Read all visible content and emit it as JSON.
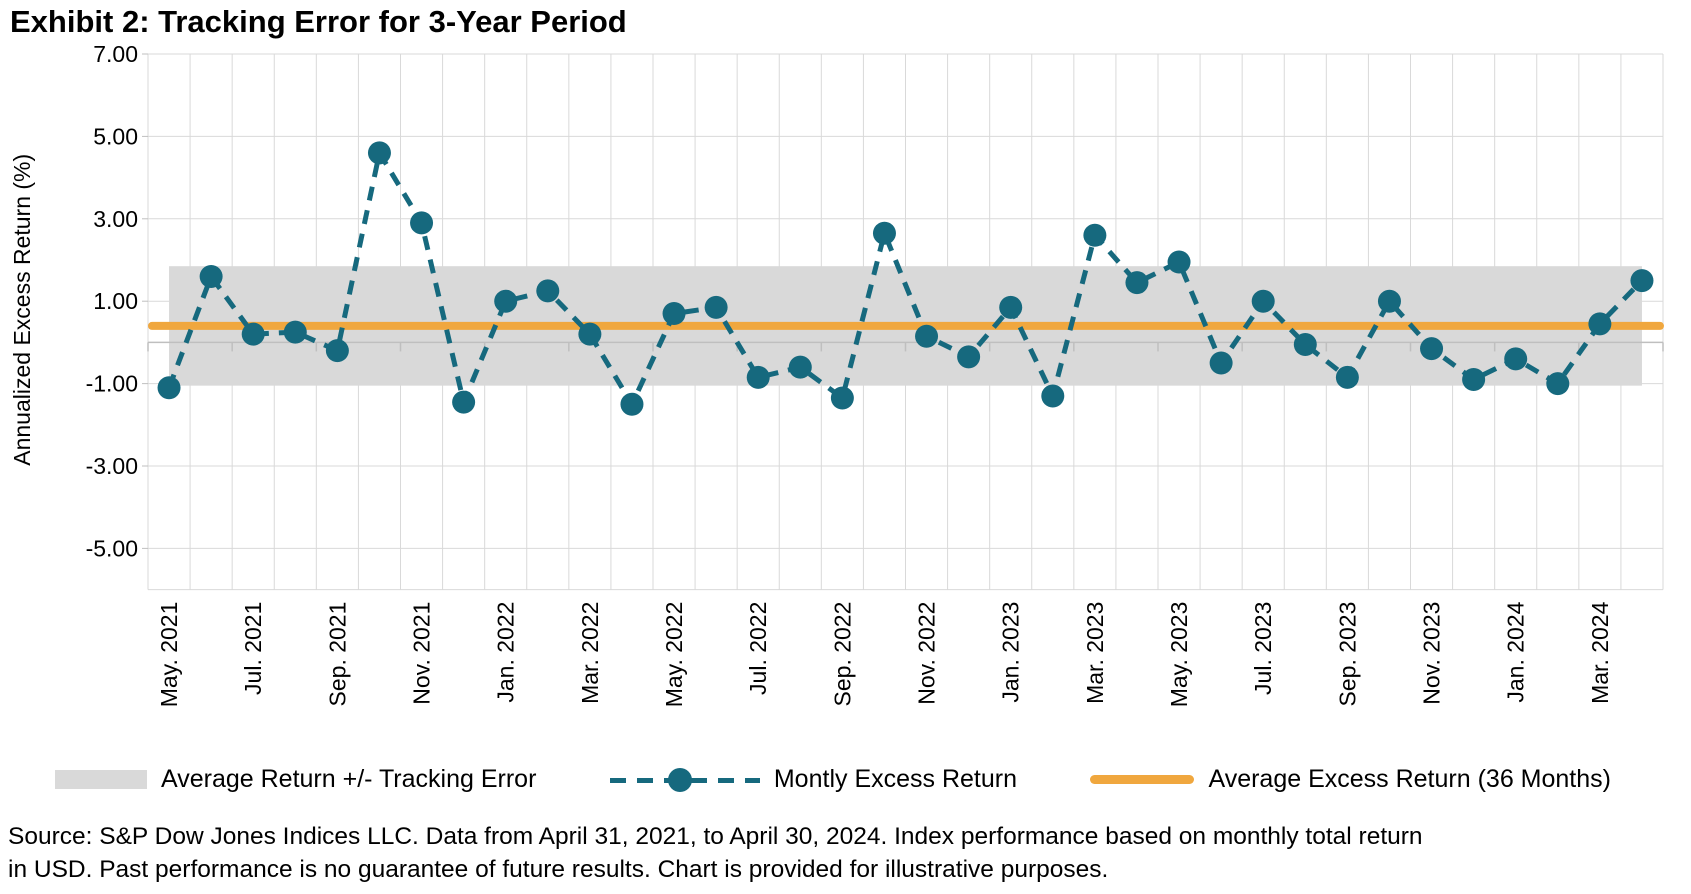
{
  "title": "Exhibit 2: Tracking Error for 3-Year Period",
  "chart_data": {
    "type": "line",
    "title": "Exhibit 2: Tracking Error for 3-Year Period",
    "xlabel": "",
    "ylabel": "Annualized Excess Return (%)",
    "ylim": [
      -6,
      7
    ],
    "yticks": [
      7,
      5,
      3,
      1,
      -1,
      -3,
      -5
    ],
    "ytick_labels": [
      "7.00",
      "5.00",
      "3.00",
      "1.00",
      "-1.00",
      "-3.00",
      "-5.00"
    ],
    "grid": true,
    "legend_position": "bottom",
    "x_tick_labels": [
      "May. 2021",
      "Jul. 2021",
      "Sep. 2021",
      "Nov. 2021",
      "Jan. 2022",
      "Mar. 2022",
      "May. 2022",
      "Jul. 2022",
      "Sep. 2022",
      "Nov. 2022",
      "Jan. 2023",
      "Mar. 2023",
      "May. 2023",
      "Jul. 2023",
      "Sep. 2023",
      "Nov. 2023",
      "Jan. 2024",
      "Mar. 2024"
    ],
    "categories": [
      "May 2021",
      "Jun 2021",
      "Jul 2021",
      "Aug 2021",
      "Sep 2021",
      "Oct 2021",
      "Nov 2021",
      "Dec 2021",
      "Jan 2022",
      "Feb 2022",
      "Mar 2022",
      "Apr 2022",
      "May 2022",
      "Jun 2022",
      "Jul 2022",
      "Aug 2022",
      "Sep 2022",
      "Oct 2022",
      "Nov 2022",
      "Dec 2022",
      "Jan 2023",
      "Feb 2023",
      "Mar 2023",
      "Apr 2023",
      "May 2023",
      "Jun 2023",
      "Jul 2023",
      "Aug 2023",
      "Sep 2023",
      "Oct 2023",
      "Nov 2023",
      "Dec 2023",
      "Jan 2024",
      "Feb 2024",
      "Mar 2024",
      "Apr 2024"
    ],
    "series": [
      {
        "name": "Average Return +/- Tracking Error",
        "type": "band",
        "low": -1.05,
        "high": 1.85,
        "color": "#d9d9d9"
      },
      {
        "name": "Montly Excess Return",
        "type": "line",
        "dashed": true,
        "marker": "circle",
        "color": "#16697e",
        "values": [
          -1.1,
          1.6,
          0.2,
          0.25,
          -0.2,
          4.6,
          2.9,
          -1.45,
          1.0,
          1.25,
          0.2,
          -1.5,
          0.7,
          0.85,
          -0.85,
          -0.6,
          -1.35,
          2.65,
          0.15,
          -0.35,
          0.85,
          -1.3,
          2.6,
          1.45,
          1.95,
          -0.5,
          1.0,
          -0.05,
          -0.85,
          1.0,
          -0.15,
          -0.9,
          -0.4,
          -1.0,
          0.45,
          1.5
        ]
      },
      {
        "name": "Average Excess Return (36 Months)",
        "type": "hline",
        "value": 0.4,
        "color": "#f0a73e"
      }
    ]
  },
  "colors": {
    "teal": "#16697e",
    "orange": "#f0a73e",
    "band_gray": "#d9d9d9",
    "gridline": "#d9d9d9",
    "zero_axis": "#bfbfbf",
    "text": "#000000"
  },
  "legend": {
    "band_label": "Average Return +/- Tracking Error",
    "line_label": "Montly Excess Return",
    "avg_label": "Average Excess Return (36 Months)"
  },
  "source_note": {
    "line1": "Source: S&P Dow Jones Indices LLC. Data from April 31, 2021, to April 30, 2024. Index performance based on monthly total return",
    "line2": "in USD. Past performance is no guarantee of future results. Chart is provided for illustrative purposes."
  }
}
